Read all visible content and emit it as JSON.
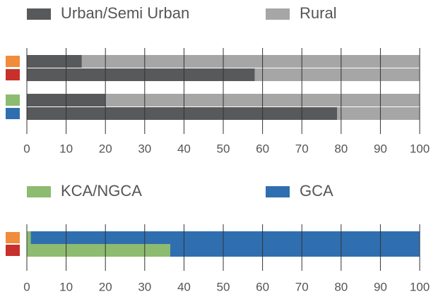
{
  "chart_data": [
    {
      "type": "bar",
      "orientation": "horizontal",
      "stacked": true,
      "categories": [
        null,
        null,
        null,
        null
      ],
      "category_colors": [
        "#f08c3c",
        "#c8302c",
        "#8dbb6f",
        "#2f6fb0"
      ],
      "series": [
        {
          "name": "Urban/Semi Urban",
          "color": "#58595b",
          "values": [
            14,
            58,
            20,
            79
          ]
        },
        {
          "name": "Rural",
          "color": "#a6a6a6",
          "values": [
            86,
            42,
            80,
            21
          ]
        }
      ],
      "xlim": [
        0,
        100
      ],
      "xticks": [
        0,
        10,
        20,
        30,
        40,
        50,
        60,
        70,
        80,
        90,
        100
      ],
      "grid": true,
      "legend": "top"
    },
    {
      "type": "bar",
      "orientation": "horizontal",
      "stacked": true,
      "categories": [
        null,
        null
      ],
      "category_colors": [
        "#f08c3c",
        "#c8302c"
      ],
      "series": [
        {
          "name": "KCA/NGCA",
          "color": "#8dbb6f",
          "values": [
            1,
            36.5
          ]
        },
        {
          "name": "GCA",
          "color": "#2f6fb0",
          "values": [
            99,
            63.5
          ]
        }
      ],
      "xlim": [
        0,
        100
      ],
      "xticks": [
        0,
        10,
        20,
        30,
        40,
        50,
        60,
        70,
        80,
        90,
        100
      ],
      "grid": true,
      "legend": "top"
    }
  ]
}
